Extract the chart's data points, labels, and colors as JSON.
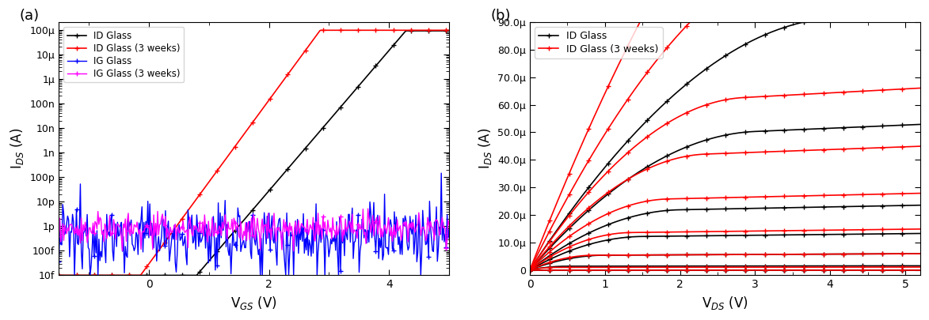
{
  "panel_a": {
    "xlabel": "V$_{GS}$ (V)",
    "ylabel": "I$_{DS}$ (A)",
    "xlim": [
      -1.5,
      5.0
    ],
    "ylim_log": [
      1e-14,
      0.0002
    ],
    "yticks": [
      1e-14,
      1e-13,
      1e-12,
      1e-11,
      1e-10,
      1e-09,
      1e-08,
      1e-07,
      1e-06,
      1e-05,
      0.0001
    ],
    "ytick_labels": [
      "10f",
      "100f",
      "1p",
      "10p",
      "100p",
      "1n",
      "10n",
      "100n",
      "1μ",
      "10μ",
      "100μ"
    ],
    "legend_labels": [
      "ID Glass",
      "ID Glass (3 weeks)",
      "IG Glass",
      "IG Glass (3 weeks)"
    ],
    "id_black_vth": 1.25,
    "id_black_ss": 0.35,
    "id_black_ioff": 2e-13,
    "id_black_ion": 9e-05,
    "id_red_vth": 0.25,
    "id_red_ss": 0.3,
    "id_red_ioff": 2e-13,
    "id_red_ion": 9.5e-05,
    "ig_base_blue": 4e-13,
    "ig_noise_blue": 1.5,
    "ig_base_magenta": 8e-13,
    "ig_noise_magenta": 0.7
  },
  "panel_b": {
    "xlabel": "V$_{DS}$ (V)",
    "ylabel": "I$_{DS}$ (A)",
    "xlim": [
      0,
      5.2
    ],
    "ylim": [
      -2e-06,
      9e-05
    ],
    "yticks": [
      0,
      1e-05,
      2e-05,
      3e-05,
      4e-05,
      5e-05,
      6e-05,
      7e-05,
      8e-05,
      9e-05
    ],
    "ytick_labels": [
      "0",
      "10.0μ",
      "20.0μ",
      "30.0μ",
      "40.0μ",
      "50.0μ",
      "60.0μ",
      "70.0μ",
      "80.0μ",
      "90.0μ"
    ],
    "legend_labels": [
      "ID Glass",
      "ID Glass (3 weeks)"
    ],
    "vgs_vals": [
      5.0,
      4.0,
      3.0,
      2.5,
      2.0,
      1.5,
      1.0,
      0.5,
      0.0
    ],
    "k_black": 5.2e-06,
    "vth_black": 1.0,
    "lambda_black": 0.025,
    "k_red": 7.2e-06,
    "vth_red": 0.15,
    "lambda_red": 0.025
  },
  "fig_width": 11.73,
  "fig_height": 4.05,
  "background_color": "white"
}
